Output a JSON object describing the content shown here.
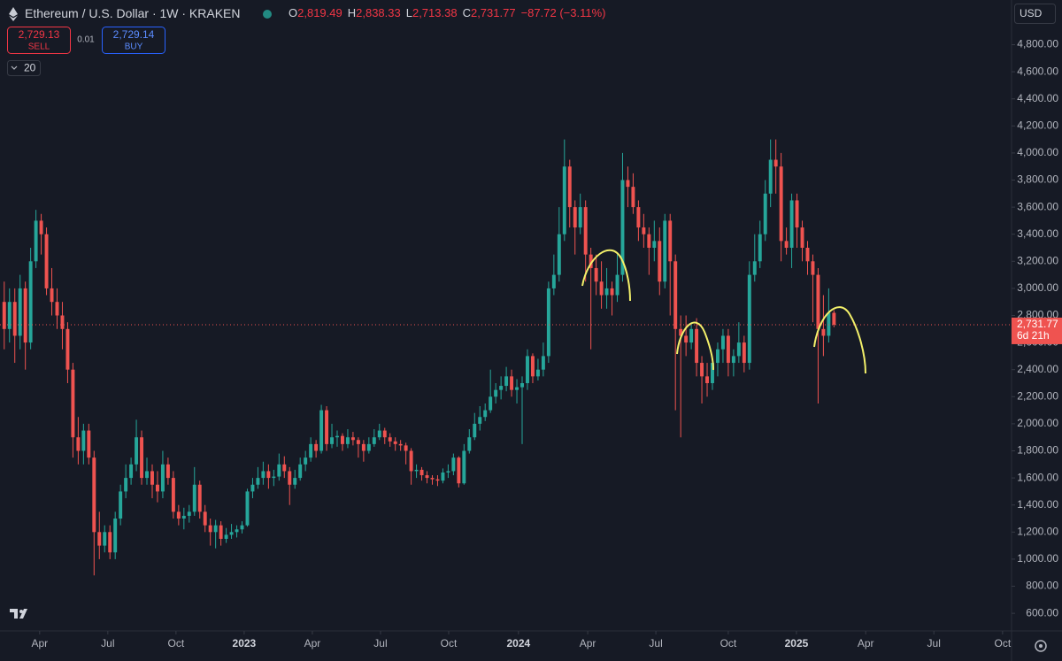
{
  "header": {
    "symbol": "Ethereum / U.S. Dollar · 1W · KRAKEN",
    "o_label": "O",
    "o": "2,819.49",
    "h_label": "H",
    "h": "2,838.33",
    "l_label": "L",
    "l": "2,713.38",
    "c_label": "C",
    "c": "2,731.77",
    "change": "−87.72 (−3.11%)"
  },
  "trade": {
    "sell_price": "2,729.13",
    "sell": "SELL",
    "spread": "0.01",
    "buy_price": "2,729.14",
    "buy": "BUY",
    "quantity": "20"
  },
  "currency": "USD",
  "price_tag": {
    "price": "2,731.77",
    "countdown": "6d 21h"
  },
  "chart_data": {
    "type": "candlestick",
    "up_color": "#26a69a",
    "down_color": "#ef5350",
    "grid": false,
    "open": [
      2900,
      2700,
      2900,
      2650,
      3000,
      2600,
      3200,
      3500,
      3400,
      3000,
      2900,
      2800,
      2700,
      2400,
      1900,
      1800,
      1950,
      1750,
      1200,
      1100,
      1200,
      1050,
      1300,
      1500,
      1600,
      1700,
      1900,
      1600,
      1650,
      1550,
      1500,
      1700,
      1600,
      1350,
      1300,
      1320,
      1350,
      1550,
      1350,
      1250,
      1200,
      1250,
      1150,
      1180,
      1200,
      1220,
      1250,
      1500,
      1550,
      1600,
      1650,
      1600,
      1610,
      1700,
      1650,
      1550,
      1600,
      1700,
      1750,
      1850,
      1800,
      2100,
      1850,
      1900,
      1910,
      1850,
      1900,
      1880,
      1850,
      1800,
      1850,
      1900,
      1950,
      1900,
      1870,
      1850,
      1840,
      1800,
      1650,
      1660,
      1620,
      1600,
      1590,
      1580,
      1640,
      1650,
      1750,
      1560,
      1800,
      1900,
      2000,
      2050,
      2100,
      2200,
      2250,
      2280,
      2350,
      2250,
      2270,
      2300,
      2500,
      2350,
      2400,
      2500,
      3000,
      3100,
      3400,
      3900,
      3600,
      3450,
      3600,
      3250,
      3150,
      3050,
      2950,
      3000,
      2950,
      3100,
      3800,
      3750,
      3600,
      3450,
      3400,
      3300,
      3350,
      3050,
      3500,
      3200,
      2700,
      2650,
      2600,
      2700,
      2450,
      2350,
      2300,
      2450,
      2550,
      2650,
      2450,
      2500,
      2600,
      2450,
      3100,
      3200,
      3400,
      3700,
      3950,
      3900,
      3350,
      3300,
      3650,
      3450,
      3300,
      3200,
      3100,
      2700,
      2650,
      2819.49
    ],
    "high": [
      3050,
      3000,
      3000,
      3100,
      3050,
      3300,
      3580,
      3550,
      3450,
      3150,
      3000,
      2900,
      2750,
      2450,
      2050,
      2000,
      2000,
      1800,
      1350,
      1250,
      1250,
      1350,
      1550,
      1700,
      1750,
      2030,
      1950,
      1750,
      1700,
      1650,
      1800,
      1750,
      1650,
      1400,
      1380,
      1400,
      1680,
      1580,
      1400,
      1300,
      1290,
      1280,
      1230,
      1260,
      1250,
      1280,
      1520,
      1600,
      1680,
      1720,
      1700,
      1660,
      1780,
      1760,
      1680,
      1660,
      1750,
      1800,
      1900,
      1880,
      2140,
      2130,
      2000,
      1950,
      1930,
      1960,
      1940,
      1900,
      1880,
      1900,
      1960,
      2000,
      1970,
      1930,
      1900,
      1880,
      1860,
      1820,
      1700,
      1680,
      1650,
      1620,
      1620,
      1670,
      1700,
      1780,
      1760,
      1850,
      1960,
      2080,
      2130,
      2150,
      2400,
      2300,
      2350,
      2420,
      2400,
      2330,
      2350,
      2550,
      2520,
      2480,
      2600,
      3050,
      3250,
      3600,
      4100,
      3950,
      3650,
      3700,
      3650,
      3300,
      3250,
      3200,
      3150,
      3050,
      3250,
      4000,
      3900,
      3850,
      3650,
      3550,
      3450,
      3500,
      3450,
      3550,
      3550,
      3250,
      2800,
      2800,
      2750,
      2780,
      2500,
      2450,
      2500,
      2600,
      2700,
      2700,
      2550,
      2750,
      2650,
      3200,
      3400,
      3500,
      3800,
      4100,
      4100,
      4000,
      3450,
      3700,
      3700,
      3500,
      3350,
      3250,
      3150,
      2950,
      3000,
      2838.33
    ],
    "low": [
      2550,
      2600,
      2450,
      2550,
      2400,
      2550,
      3150,
      3250,
      2950,
      2800,
      2700,
      2550,
      2300,
      1750,
      1700,
      1700,
      1700,
      880,
      1000,
      1050,
      1000,
      1000,
      1250,
      1450,
      1550,
      1650,
      1550,
      1550,
      1450,
      1420,
      1450,
      1550,
      1300,
      1250,
      1220,
      1270,
      1320,
      1300,
      1200,
      1100,
      1080,
      1100,
      1120,
      1150,
      1160,
      1190,
      1240,
      1450,
      1520,
      1550,
      1520,
      1540,
      1580,
      1600,
      1400,
      1520,
      1580,
      1650,
      1720,
      1750,
      1780,
      1800,
      1820,
      1830,
      1800,
      1820,
      1840,
      1750,
      1720,
      1780,
      1830,
      1880,
      1850,
      1830,
      1800,
      1800,
      1700,
      1550,
      1600,
      1580,
      1560,
      1550,
      1540,
      1560,
      1600,
      1620,
      1530,
      1550,
      1780,
      1880,
      1950,
      2020,
      2080,
      2150,
      2180,
      2240,
      2200,
      2150,
      1850,
      2250,
      2300,
      2320,
      2350,
      2450,
      2950,
      3050,
      3350,
      3450,
      3250,
      3400,
      3050,
      2550,
      2950,
      2850,
      2850,
      2800,
      2900,
      3050,
      3600,
      3550,
      3350,
      3300,
      3100,
      3200,
      2950,
      3000,
      2800,
      2100,
      1900,
      2500,
      2550,
      2350,
      2150,
      2200,
      2250,
      2350,
      2450,
      2350,
      2350,
      2450,
      2380,
      2400,
      3050,
      3150,
      3350,
      3600,
      3700,
      3200,
      3250,
      3150,
      3300,
      3200,
      3100,
      2750,
      2150,
      2500,
      2600,
      2713.38
    ],
    "close": [
      2700,
      2900,
      2650,
      3000,
      2600,
      3200,
      3500,
      3400,
      3000,
      2900,
      2800,
      2700,
      2400,
      1900,
      1800,
      1950,
      1750,
      1200,
      1100,
      1200,
      1050,
      1300,
      1500,
      1600,
      1700,
      1900,
      1600,
      1650,
      1550,
      1500,
      1700,
      1600,
      1350,
      1300,
      1320,
      1350,
      1550,
      1350,
      1250,
      1200,
      1250,
      1150,
      1180,
      1200,
      1220,
      1250,
      1500,
      1550,
      1600,
      1650,
      1600,
      1610,
      1700,
      1650,
      1550,
      1600,
      1700,
      1750,
      1850,
      1800,
      2100,
      1850,
      1900,
      1910,
      1850,
      1900,
      1880,
      1850,
      1800,
      1850,
      1900,
      1950,
      1900,
      1870,
      1850,
      1840,
      1800,
      1650,
      1660,
      1620,
      1600,
      1590,
      1580,
      1640,
      1650,
      1750,
      1560,
      1800,
      1900,
      2000,
      2050,
      2100,
      2200,
      2250,
      2280,
      2350,
      2250,
      2270,
      2300,
      2500,
      2350,
      2400,
      2500,
      3000,
      3100,
      3400,
      3900,
      3600,
      3450,
      3600,
      3250,
      3150,
      3050,
      2950,
      3000,
      2950,
      3100,
      3800,
      3750,
      3600,
      3450,
      3400,
      3300,
      3350,
      3050,
      3500,
      3200,
      2700,
      2650,
      2600,
      2700,
      2450,
      2350,
      2300,
      2450,
      2550,
      2650,
      2450,
      2500,
      2600,
      2450,
      3100,
      3200,
      3400,
      3700,
      3950,
      3900,
      3350,
      3300,
      3650,
      3450,
      3300,
      3200,
      3100,
      2700,
      2650,
      2819.49,
      2731.77
    ],
    "xlim": [
      -0.8,
      190.6
    ],
    "xticks": [
      {
        "value": 6.7,
        "label": "Apr"
      },
      {
        "value": 19.6,
        "label": "Jul"
      },
      {
        "value": 32.5,
        "label": "Oct"
      },
      {
        "value": 45.4,
        "label": "2023"
      },
      {
        "value": 58.3,
        "label": "Apr"
      },
      {
        "value": 71.2,
        "label": "Jul"
      },
      {
        "value": 84.1,
        "label": "Oct"
      },
      {
        "value": 97.3,
        "label": "2024"
      },
      {
        "value": 110.4,
        "label": "Apr"
      },
      {
        "value": 123.3,
        "label": "Jul"
      },
      {
        "value": 137,
        "label": "Oct"
      },
      {
        "value": 149.9,
        "label": "2025"
      },
      {
        "value": 163,
        "label": "Apr"
      },
      {
        "value": 175.9,
        "label": "Jul"
      },
      {
        "value": 188.9,
        "label": "Oct"
      }
    ],
    "ylim": [
      470,
      5130
    ],
    "yticks": [
      {
        "value": 600,
        "label": "600.00"
      },
      {
        "value": 800,
        "label": "800.00"
      },
      {
        "value": 1000,
        "label": "1,000.00"
      },
      {
        "value": 1200,
        "label": "1,200.00"
      },
      {
        "value": 1400,
        "label": "1,400.00"
      },
      {
        "value": 1600,
        "label": "1,600.00"
      },
      {
        "value": 1800,
        "label": "1,800.00"
      },
      {
        "value": 2000,
        "label": "2,000.00"
      },
      {
        "value": 2200,
        "label": "2,200.00"
      },
      {
        "value": 2400,
        "label": "2,400.00"
      },
      {
        "value": 2600,
        "label": "2,600.00"
      },
      {
        "value": 2800,
        "label": "2,800.00"
      },
      {
        "value": 3000,
        "label": "3,000.00"
      },
      {
        "value": 3200,
        "label": "3,200.00"
      },
      {
        "value": 3400,
        "label": "3,400.00"
      },
      {
        "value": 3600,
        "label": "3,600.00"
      },
      {
        "value": 3800,
        "label": "3,800.00"
      },
      {
        "value": 4000,
        "label": "4,000.00"
      },
      {
        "value": 4200,
        "label": "4,200.00"
      },
      {
        "value": 4400,
        "label": "4,400.00"
      },
      {
        "value": 4600,
        "label": "4,600.00"
      },
      {
        "value": 4800,
        "label": "4,800.00"
      }
    ]
  }
}
